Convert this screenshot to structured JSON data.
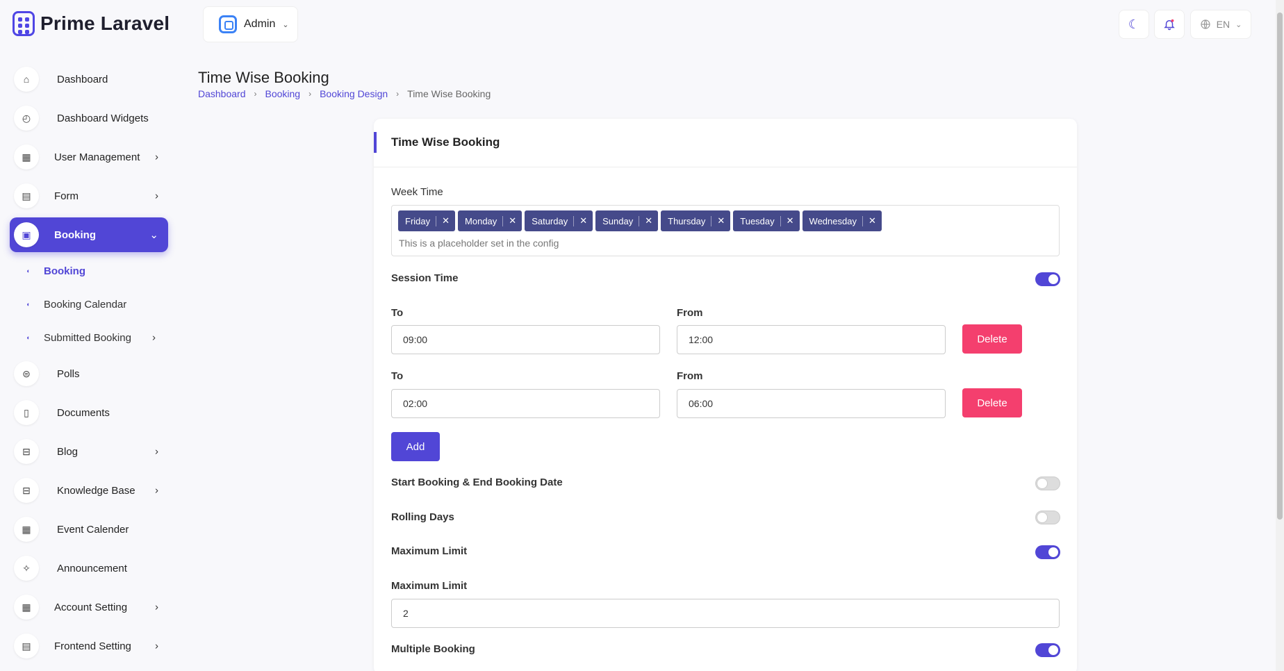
{
  "brand": {
    "name": "Prime Laravel"
  },
  "role_switch": {
    "label": "Admin"
  },
  "topbar": {
    "language": "EN"
  },
  "sidebar": {
    "items": [
      {
        "label": "Dashboard",
        "icon": "home-icon",
        "glyph": "⌂"
      },
      {
        "label": "Dashboard Widgets",
        "icon": "gauge-icon",
        "glyph": "◴"
      },
      {
        "label": "User Management",
        "icon": "grid-icon",
        "glyph": "▦",
        "chevron": "›"
      },
      {
        "label": "Form",
        "icon": "table-icon",
        "glyph": "▤",
        "chevron": "›"
      },
      {
        "label": "Booking",
        "icon": "booking-icon",
        "glyph": "▣",
        "chevron": "⌄"
      },
      {
        "label": "Polls",
        "icon": "poll-icon",
        "glyph": "⊜"
      },
      {
        "label": "Documents",
        "icon": "document-icon",
        "glyph": "▯"
      },
      {
        "label": "Blog",
        "icon": "blog-icon",
        "glyph": "⊟",
        "chevron": "›"
      },
      {
        "label": "Knowledge Base",
        "icon": "book-icon",
        "glyph": "⊟",
        "chevron": "›"
      },
      {
        "label": "Event Calender",
        "icon": "calendar-icon",
        "glyph": "▦"
      },
      {
        "label": "Announcement",
        "icon": "megaphone-icon",
        "glyph": "✧"
      },
      {
        "label": "Account Setting",
        "icon": "settings-grid-icon",
        "glyph": "▦",
        "chevron": "›"
      },
      {
        "label": "Frontend Setting",
        "icon": "layout-icon",
        "glyph": "▤",
        "chevron": "›"
      }
    ],
    "submenu": [
      {
        "label": "Booking"
      },
      {
        "label": "Booking Calendar"
      },
      {
        "label": "Submitted Booking",
        "chevron": "›"
      }
    ]
  },
  "page": {
    "title": "Time Wise Booking",
    "breadcrumb": [
      "Dashboard",
      "Booking",
      "Booking Design",
      "Time Wise Booking"
    ]
  },
  "card": {
    "title": "Time Wise Booking",
    "week_time_label": "Week Time",
    "week_days": [
      "Friday",
      "Monday",
      "Saturday",
      "Sunday",
      "Thursday",
      "Tuesday",
      "Wednesday"
    ],
    "week_placeholder": "This is a placeholder set in the config",
    "session_time_label": "Session Time",
    "session_time_enabled": true,
    "sessions": [
      {
        "to_label": "To",
        "to": "09:00",
        "from_label": "From",
        "from": "12:00",
        "delete_label": "Delete"
      },
      {
        "to_label": "To",
        "to": "02:00",
        "from_label": "From",
        "from": "06:00",
        "delete_label": "Delete"
      }
    ],
    "add_label": "Add",
    "start_end_label": "Start Booking & End Booking Date",
    "start_end_enabled": false,
    "rolling_days_label": "Rolling Days",
    "rolling_days_enabled": false,
    "maximum_limit_toggle_label": "Maximum Limit",
    "maximum_limit_enabled": true,
    "maximum_limit_label": "Maximum Limit",
    "maximum_limit_value": "2",
    "multiple_booking_label": "Multiple Booking",
    "multiple_booking_enabled": true
  },
  "colors": {
    "accent": "#5146d6",
    "danger": "#f43f6e",
    "tag": "#454a8a"
  }
}
